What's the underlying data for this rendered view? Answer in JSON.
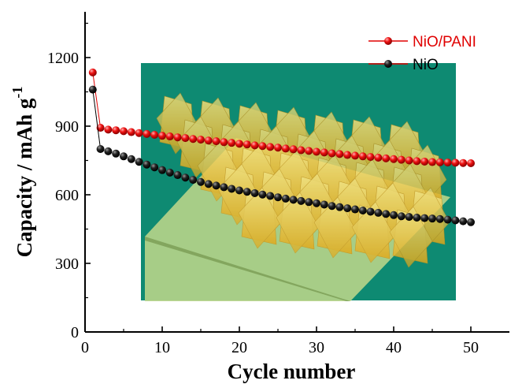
{
  "chart_data": {
    "type": "scatter",
    "title": "",
    "xlabel": "Cycle number",
    "ylabel": "Capacity / mAh g",
    "ylabel_superscript": "-1",
    "xlim": [
      0,
      55
    ],
    "ylim": [
      0,
      1400
    ],
    "xticks": [
      0,
      10,
      20,
      30,
      40,
      50
    ],
    "yticks": [
      0,
      300,
      600,
      900,
      1200
    ],
    "grid": false,
    "legend_position": "top-right",
    "series": [
      {
        "name": "NiO/PANI",
        "color": "#e00000",
        "x": [
          1,
          2,
          3,
          4,
          5,
          6,
          7,
          8,
          9,
          10,
          11,
          12,
          13,
          14,
          15,
          16,
          17,
          18,
          19,
          20,
          21,
          22,
          23,
          24,
          25,
          26,
          27,
          28,
          29,
          30,
          31,
          32,
          33,
          34,
          35,
          36,
          37,
          38,
          39,
          40,
          41,
          42,
          43,
          44,
          45,
          46,
          47,
          48,
          49,
          50
        ],
        "values": [
          1135,
          893,
          885,
          882,
          878,
          874,
          870,
          866,
          862,
          858,
          855,
          851,
          848,
          844,
          841,
          837,
          834,
          830,
          827,
          823,
          820,
          816,
          813,
          809,
          806,
          802,
          799,
          795,
          792,
          788,
          785,
          781,
          778,
          774,
          771,
          768,
          765,
          762,
          759,
          756,
          753,
          750,
          747,
          745,
          743,
          742,
          741,
          740,
          739,
          738
        ]
      },
      {
        "name": "NiO",
        "color": "#000000",
        "x": [
          1,
          2,
          3,
          4,
          5,
          6,
          7,
          8,
          9,
          10,
          11,
          12,
          13,
          14,
          15,
          16,
          17,
          18,
          19,
          20,
          21,
          22,
          23,
          24,
          25,
          26,
          27,
          28,
          29,
          30,
          31,
          32,
          33,
          34,
          35,
          36,
          37,
          38,
          39,
          40,
          41,
          42,
          43,
          44,
          45,
          46,
          47,
          48,
          49,
          50
        ],
        "values": [
          1060,
          800,
          790,
          780,
          768,
          756,
          744,
          732,
          720,
          708,
          697,
          686,
          675,
          665,
          656,
          647,
          640,
          633,
          626,
          619,
          613,
          607,
          601,
          595,
          589,
          583,
          578,
          573,
          568,
          563,
          557,
          551,
          546,
          541,
          536,
          531,
          526,
          521,
          516,
          511,
          506,
          503,
          500,
          498,
          496,
          494,
          491,
          488,
          484,
          480
        ]
      }
    ]
  },
  "colors": {
    "inset_background": "#0e8a72",
    "inset_plate": "#b8d48a",
    "inset_fins": "#f5c832"
  },
  "inset_image": "nanostructure-illustration"
}
